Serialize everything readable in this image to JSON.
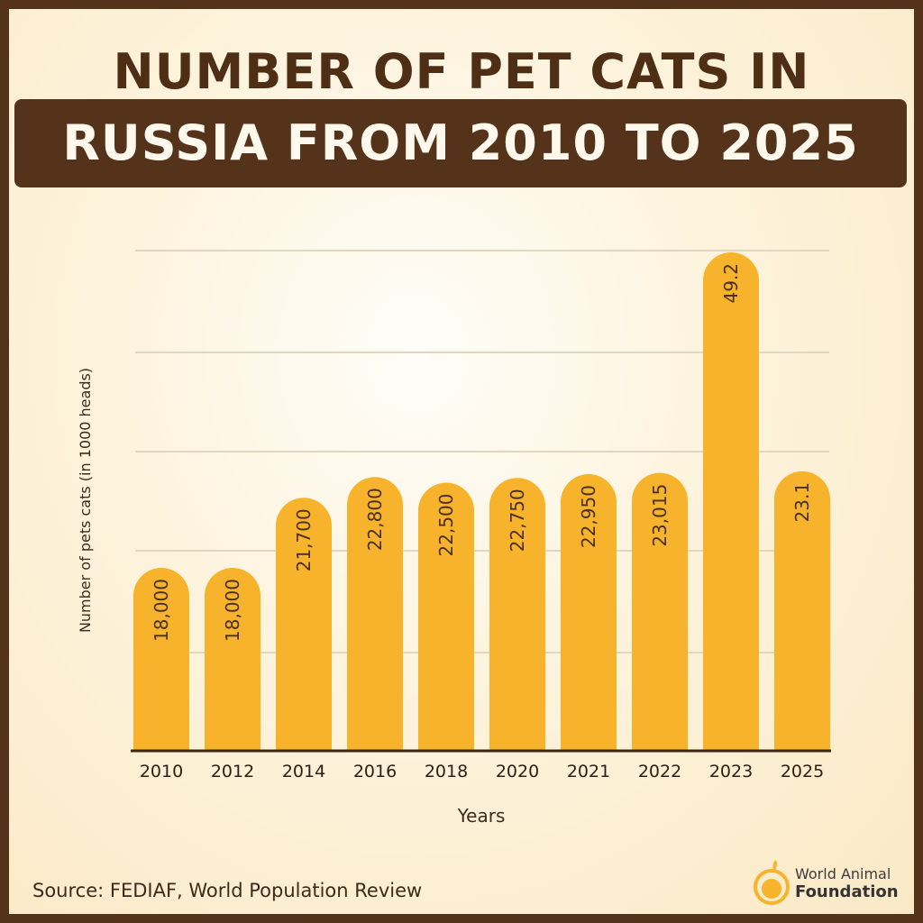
{
  "title_line1": "NUMBER OF PET CATS IN",
  "title_line2": "RUSSIA FROM 2010 TO 2025",
  "source": "Source: FEDIAF, World Population Review",
  "logo": {
    "line1": "World Animal",
    "line2": "Foundation"
  },
  "colors": {
    "bar": "#f7b32b",
    "frame": "#55321a",
    "text": "#4a3020"
  },
  "chart_data": {
    "type": "bar",
    "categories": [
      "2010",
      "2012",
      "2014",
      "2016",
      "2018",
      "2020",
      "2021",
      "2022",
      "2023",
      "2025"
    ],
    "values": [
      18000,
      18000,
      21700,
      22800,
      22500,
      22750,
      22950,
      23015,
      49.2,
      23.1
    ],
    "data_labels": [
      "18,000",
      "18,000",
      "21,700",
      "22,800",
      "22,500",
      "22,750",
      "22,950",
      "23,015",
      "49.2",
      "23.1"
    ],
    "xlabel": "Years",
    "ylabel": "Number of pets cats (in 1000 heads)",
    "grid": true,
    "y_tick_labels_shown": false
  }
}
